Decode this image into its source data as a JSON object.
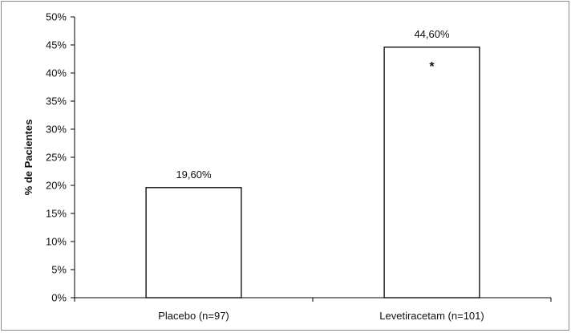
{
  "chart_data": {
    "type": "bar",
    "categories": [
      "Placebo (n=97)",
      "Levetiracetam (n=101)"
    ],
    "values": [
      19.6,
      44.6
    ],
    "data_labels": [
      "19,60%",
      "44,60%"
    ],
    "annotations": [
      {
        "category_index": 1,
        "text": "*"
      }
    ],
    "ylabel": "% de Pacientes",
    "ylim": [
      0,
      50
    ],
    "yticks": [
      0,
      5,
      10,
      15,
      20,
      25,
      30,
      35,
      40,
      45,
      50
    ],
    "ytick_labels": [
      "0%",
      "5%",
      "10%",
      "15%",
      "20%",
      "25%",
      "30%",
      "35%",
      "40%",
      "45%",
      "50%"
    ],
    "grid": false,
    "legend": "none",
    "bar_fill": "#ffffff",
    "bar_stroke": "#000000"
  }
}
